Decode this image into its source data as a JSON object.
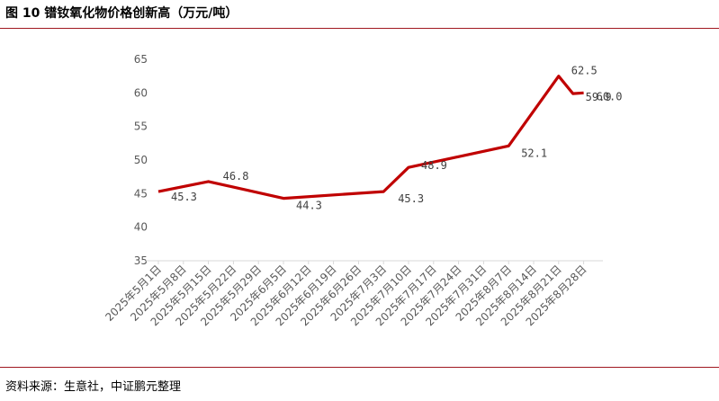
{
  "header": {
    "title": "图 10  镨钕氧化物价格创新高（万元/吨）"
  },
  "footer": {
    "source": "资料来源：生意社，中证鹏元整理"
  },
  "colors": {
    "rule": "#a01820",
    "line": "#c00000",
    "tick": "#595959",
    "axis": "#d9d9d9"
  },
  "chart_data": {
    "type": "line",
    "title": "镨钕氧化物价格创新高（万元/吨）",
    "xlabel": "",
    "ylabel": "",
    "ylim": [
      35,
      65
    ],
    "yticks": [
      35,
      40,
      45,
      50,
      55,
      60,
      65
    ],
    "grid": false,
    "legend": "none",
    "categories": [
      "2025年5月1日",
      "2025年5月8日",
      "2025年5月15日",
      "2025年5月22日",
      "2025年5月29日",
      "2025年6月5日",
      "2025年6月12日",
      "2025年6月19日",
      "2025年6月26日",
      "2025年7月3日",
      "2025年7月10日",
      "2025年7月17日",
      "2025年7月24日",
      "2025年7月31日",
      "2025年8月7日",
      "2025年8月14日",
      "2025年8月21日",
      "2025年8月28日"
    ],
    "series": [
      {
        "color": "#c00000",
        "points": [
          {
            "x": "2025年5月1日",
            "y": 45.3,
            "label": "45.3"
          },
          {
            "x": "2025年5月15日",
            "y": 46.8,
            "label": "46.8"
          },
          {
            "x": "2025年6月5日",
            "y": 44.3,
            "label": "44.3"
          },
          {
            "x": "2025年7月3日",
            "y": 45.3,
            "label": "45.3"
          },
          {
            "x": "2025年7月10日",
            "y": 48.9,
            "label": "48.9"
          },
          {
            "x": "2025年8月7日",
            "y": 52.1,
            "label": "52.1"
          },
          {
            "x": "2025年8月21日",
            "y": 62.5,
            "label": "62.5"
          },
          {
            "x": "2025年8月25日",
            "y": 59.9,
            "label": "59.9"
          },
          {
            "x": "2025年8月28日",
            "y": 60.0,
            "label": "60.0"
          }
        ]
      }
    ]
  }
}
